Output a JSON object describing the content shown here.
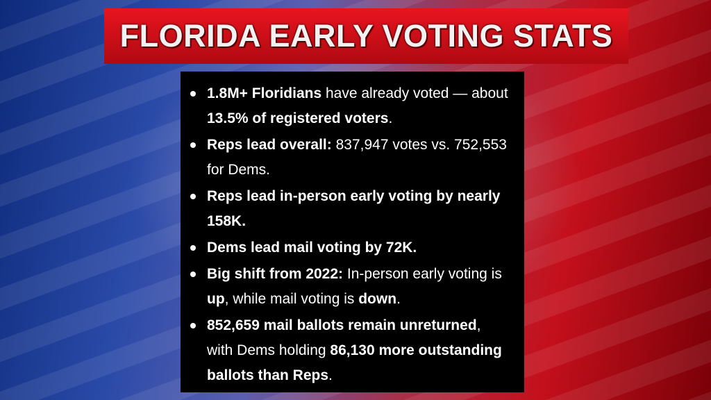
{
  "title": "FLORIDA EARLY VOTING STATS",
  "bullets": [
    {
      "runs": [
        {
          "text": "1.8M+ Floridians",
          "bold": true
        },
        {
          "text": " have already voted — about ",
          "bold": false
        },
        {
          "text": "13.5% of registered voters",
          "bold": true
        },
        {
          "text": ".",
          "bold": false
        }
      ]
    },
    {
      "runs": [
        {
          "text": "Reps lead overall:",
          "bold": true
        },
        {
          "text": " 837,947 votes vs. 752,553 for Dems.",
          "bold": false
        }
      ]
    },
    {
      "runs": [
        {
          "text": "Reps lead in-person early voting by nearly 158K.",
          "bold": true
        }
      ]
    },
    {
      "runs": [
        {
          "text": "Dems lead mail voting by 72K.",
          "bold": true
        }
      ]
    },
    {
      "runs": [
        {
          "text": "Big shift from 2022:",
          "bold": true
        },
        {
          "text": " In-person early voting is ",
          "bold": false
        },
        {
          "text": "up",
          "bold": true
        },
        {
          "text": ", while mail voting is ",
          "bold": false
        },
        {
          "text": "down",
          "bold": true
        },
        {
          "text": ".",
          "bold": false
        }
      ]
    },
    {
      "runs": [
        {
          "text": "852,659 mail ballots remain unreturned",
          "bold": true
        },
        {
          "text": ", with Dems holding ",
          "bold": false
        },
        {
          "text": "86,130 more outstanding ballots than Reps",
          "bold": true
        },
        {
          "text": ".",
          "bold": false
        }
      ]
    }
  ]
}
